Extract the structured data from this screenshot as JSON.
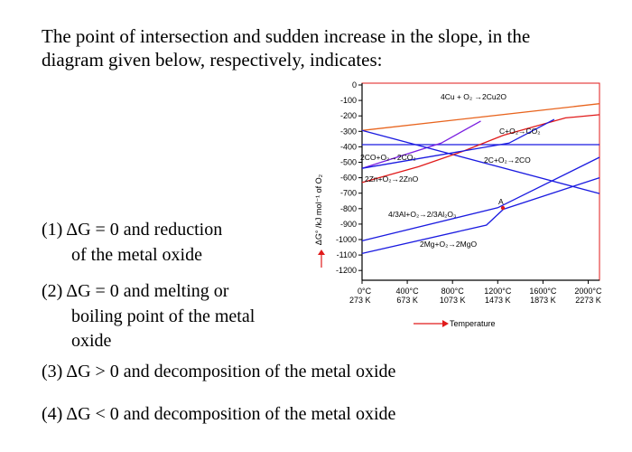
{
  "question": {
    "line1": "The point of intersection and sudden increase in the slope, in the",
    "line2": "diagram given below, respectively, indicates:"
  },
  "options": {
    "opt1_line1": "(1) ΔG = 0 and reduction",
    "opt1_line2": "of the metal oxide",
    "opt2_line1": "(2) ΔG = 0 and melting or",
    "opt2_line2": "boiling point of the metal",
    "opt2_line3": "oxide",
    "opt3": "(3) ΔG > 0 and decomposition of the metal oxide",
    "opt4": "(4) ΔG < 0 and decomposition of the metal oxide"
  },
  "chart_data": {
    "type": "line",
    "title": "",
    "ylabel": "ΔG° /kJ mol⁻¹ of O₂",
    "xlabel": "Temperature",
    "xlim": [
      0,
      2100
    ],
    "ylim": [
      -1250,
      0
    ],
    "y_ticks": [
      "0",
      "-100",
      "-200",
      "-300",
      "-400",
      "-500",
      "-600",
      "-700",
      "-800",
      "-900",
      "-1000",
      "-1100",
      "-1200"
    ],
    "x_ticks": [
      {
        "c": "0°C",
        "k": "273 K",
        "v": 0
      },
      {
        "c": "400°C",
        "k": "673 K",
        "v": 400
      },
      {
        "c": "800°C",
        "k": "1073 K",
        "v": 800
      },
      {
        "c": "1200°C",
        "k": "1473 K",
        "v": 1200
      },
      {
        "c": "1600°C",
        "k": "1873 K",
        "v": 1600
      },
      {
        "c": "2000°C",
        "k": "2273 K",
        "v": 2000
      }
    ],
    "series": [
      {
        "name": "4Cu + O₂ →2Cu2O",
        "color": "#e8641e",
        "x": [
          0,
          2100
        ],
        "y": [
          -300,
          -130
        ]
      },
      {
        "name": "C+O₂→CO₂",
        "color": "#1a1ae0",
        "x": [
          0,
          2100
        ],
        "y": [
          -390,
          -390
        ]
      },
      {
        "name": "2CO+O₂→2CO₂",
        "color": "#7a1ee0",
        "x": [
          0,
          700,
          1050
        ],
        "y": [
          -540,
          -380,
          -240
        ]
      },
      {
        "name": "2C+O₂→2CO",
        "color": "#1a1ae0",
        "x": [
          0,
          2100
        ],
        "y": [
          -300,
          -700
        ]
      },
      {
        "name": "2Zn+O₂→2ZnO",
        "color": "#e01a1a",
        "x": [
          0,
          500,
          900,
          1250,
          1800,
          2100
        ],
        "y": [
          -630,
          -530,
          -430,
          -330,
          -220,
          -200
        ]
      },
      {
        "name": "4/3Al+O₂→2/3Al₂O₃",
        "color": "#1a1ae0",
        "x": [
          0,
          1200,
          2100
        ],
        "y": [
          -1000,
          -790,
          -470
        ]
      },
      {
        "name": "2Mg+O₂→2MgO",
        "color": "#1a1ae0",
        "x": [
          0,
          1100,
          1250,
          2100
        ],
        "y": [
          -1080,
          -900,
          -800,
          -600
        ]
      },
      {
        "name": "",
        "color": "#1a1ae0",
        "x": [
          0,
          1300,
          1700
        ],
        "y": [
          -540,
          -380,
          -230
        ]
      }
    ],
    "annotations": [
      "A"
    ],
    "grid": false
  }
}
